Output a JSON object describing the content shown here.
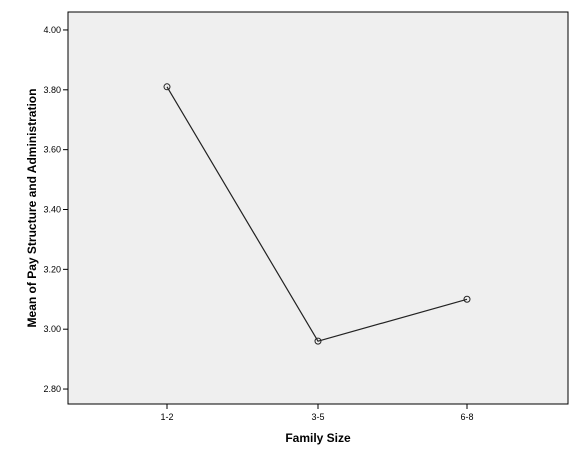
{
  "chart_data": {
    "type": "line",
    "xlabel": "Family Size",
    "ylabel": "Mean of Pay Structure and Administration",
    "categories": [
      "1-2",
      "3-5",
      "6-8"
    ],
    "series": [
      {
        "values": [
          3.81,
          2.96,
          3.1
        ]
      }
    ],
    "ylim": [
      2.75,
      4.06
    ],
    "yticks": [
      "2.80",
      "3.00",
      "3.20",
      "3.40",
      "3.60",
      "3.80",
      "4.00"
    ],
    "grid": false,
    "colors": {
      "plot_background": "#efefef",
      "line": "#222222",
      "frame": "#000000"
    }
  }
}
